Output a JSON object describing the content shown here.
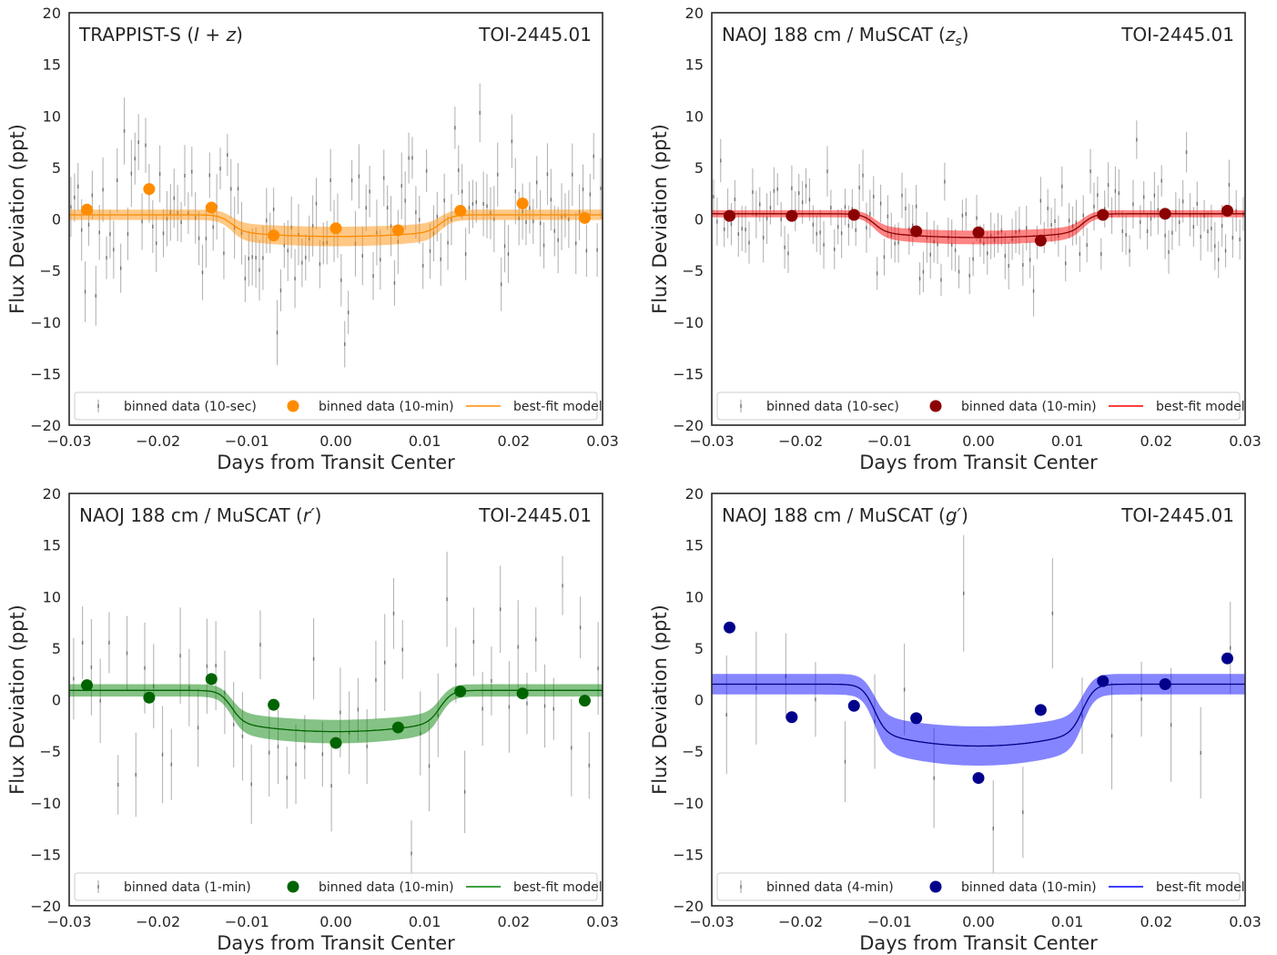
{
  "chart_data": [
    {
      "type": "scatter",
      "panel": "top-left",
      "instrument": "TRAPPIST-S",
      "band": "(I + z)",
      "target": "TOI-2445.01",
      "xlabel": "Days from Transit Center",
      "ylabel": "Flux Deviation (ppt)",
      "xlim": [
        -0.03,
        0.03
      ],
      "ylim": [
        -20,
        20
      ],
      "xticks": [
        "−0.03",
        "−0.02",
        "−0.01",
        "0.00",
        "0.01",
        "0.02",
        "0.03"
      ],
      "yticks": [
        "−20",
        "−15",
        "−10",
        "−5",
        "0",
        "5",
        "10",
        "15",
        "20"
      ],
      "grid": false,
      "legend_position": "bottom",
      "legend": [
        "binned data (10-sec)",
        "binned data (10-min)",
        "best-fit model"
      ],
      "color": "#ff8c00",
      "model": {
        "baseline": 0.4,
        "depth": 2.1,
        "half_width": 0.0118,
        "ingress": 0.0012,
        "band": 0.5
      },
      "binned_10min": {
        "x": [
          -0.028,
          -0.021,
          -0.014,
          -0.007,
          0.0,
          0.007,
          0.014,
          0.021,
          0.028
        ],
        "y": [
          0.9,
          2.9,
          1.1,
          -1.6,
          -0.9,
          -1.1,
          0.8,
          1.5,
          0.1
        ]
      },
      "fine_data": {
        "n": 150,
        "spread": 3.5,
        "err": 2.6
      }
    },
    {
      "type": "scatter",
      "panel": "top-right",
      "instrument": "NAOJ 188 cm / MuSCAT",
      "band": "(z_s)",
      "target": "TOI-2445.01",
      "xlabel": "Days from Transit Center",
      "ylabel": "Flux Deviation (ppt)",
      "xlim": [
        -0.03,
        0.03
      ],
      "ylim": [
        -20,
        20
      ],
      "xticks": [
        "−0.03",
        "−0.02",
        "−0.01",
        "0.00",
        "0.01",
        "0.02",
        "0.03"
      ],
      "yticks": [
        "−20",
        "−15",
        "−10",
        "−5",
        "0",
        "5",
        "10",
        "15",
        "20"
      ],
      "grid": false,
      "legend_position": "bottom",
      "legend": [
        "binned data (10-sec)",
        "binned data (10-min)",
        "best-fit model"
      ],
      "color": "#ff0000",
      "marker_color": "#8b0000",
      "model": {
        "baseline": 0.5,
        "depth": 2.3,
        "half_width": 0.0118,
        "ingress": 0.0012,
        "band": 0.35
      },
      "binned_10min": {
        "x": [
          -0.028,
          -0.021,
          -0.014,
          -0.007,
          0.0,
          0.007,
          0.014,
          0.021,
          0.028
        ],
        "y": [
          0.3,
          0.3,
          0.4,
          -1.2,
          -1.3,
          -2.1,
          0.4,
          0.5,
          0.8
        ]
      },
      "fine_data": {
        "n": 150,
        "spread": 2.2,
        "err": 2.0
      }
    },
    {
      "type": "scatter",
      "panel": "bottom-left",
      "instrument": "NAOJ 188 cm / MuSCAT",
      "band": "(r′)",
      "target": "TOI-2445.01",
      "xlabel": "Days from Transit Center",
      "ylabel": "Flux Deviation (ppt)",
      "xlim": [
        -0.03,
        0.03
      ],
      "ylim": [
        -20,
        20
      ],
      "xticks": [
        "−0.03",
        "−0.02",
        "−0.01",
        "0.00",
        "0.01",
        "0.02",
        "0.03"
      ],
      "yticks": [
        "−20",
        "−15",
        "−10",
        "−5",
        "0",
        "5",
        "10",
        "15",
        "20"
      ],
      "grid": false,
      "legend_position": "bottom",
      "legend": [
        "binned data (1-min)",
        "binned data (10-min)",
        "best-fit model"
      ],
      "color": "#008000",
      "marker_color": "#006400",
      "model": {
        "baseline": 0.9,
        "depth": 4.0,
        "half_width": 0.0118,
        "ingress": 0.0012,
        "band": 0.6
      },
      "binned_10min": {
        "x": [
          -0.028,
          -0.021,
          -0.014,
          -0.007,
          0.0,
          0.007,
          0.014,
          0.021,
          0.028
        ],
        "y": [
          1.4,
          0.2,
          2.0,
          -0.5,
          -4.2,
          -2.7,
          0.8,
          0.6,
          -0.1
        ]
      },
      "fine_data": {
        "n": 60,
        "spread": 5.0,
        "err": 3.8
      }
    },
    {
      "type": "scatter",
      "panel": "bottom-right",
      "instrument": "NAOJ 188 cm / MuSCAT",
      "band": "(g′)",
      "target": "TOI-2445.01",
      "xlabel": "Days from Transit Center",
      "ylabel": "Flux Deviation (ppt)",
      "xlim": [
        -0.03,
        0.03
      ],
      "ylim": [
        -20,
        20
      ],
      "xticks": [
        "−0.03",
        "−0.02",
        "−0.01",
        "0.00",
        "0.01",
        "0.02",
        "0.03"
      ],
      "yticks": [
        "−20",
        "−15",
        "−10",
        "−5",
        "0",
        "5",
        "10",
        "15",
        "20"
      ],
      "grid": false,
      "legend_position": "bottom",
      "legend": [
        "binned data (4-min)",
        "binned data (10-min)",
        "best-fit model"
      ],
      "color": "#0000ff",
      "marker_color": "#00008b",
      "model": {
        "baseline": 1.5,
        "depth": 6.0,
        "half_width": 0.0118,
        "ingress": 0.0012,
        "band": 1.0
      },
      "binned_10min": {
        "x": [
          -0.028,
          -0.021,
          -0.014,
          -0.007,
          0.0,
          0.007,
          0.014,
          0.021,
          0.028
        ],
        "y": [
          7.0,
          -1.7,
          -0.6,
          -1.8,
          -7.6,
          -1.0,
          1.8,
          1.5,
          4.0
        ]
      },
      "fine_data": {
        "n": 18,
        "spread": 6.0,
        "err": 4.6
      }
    }
  ]
}
